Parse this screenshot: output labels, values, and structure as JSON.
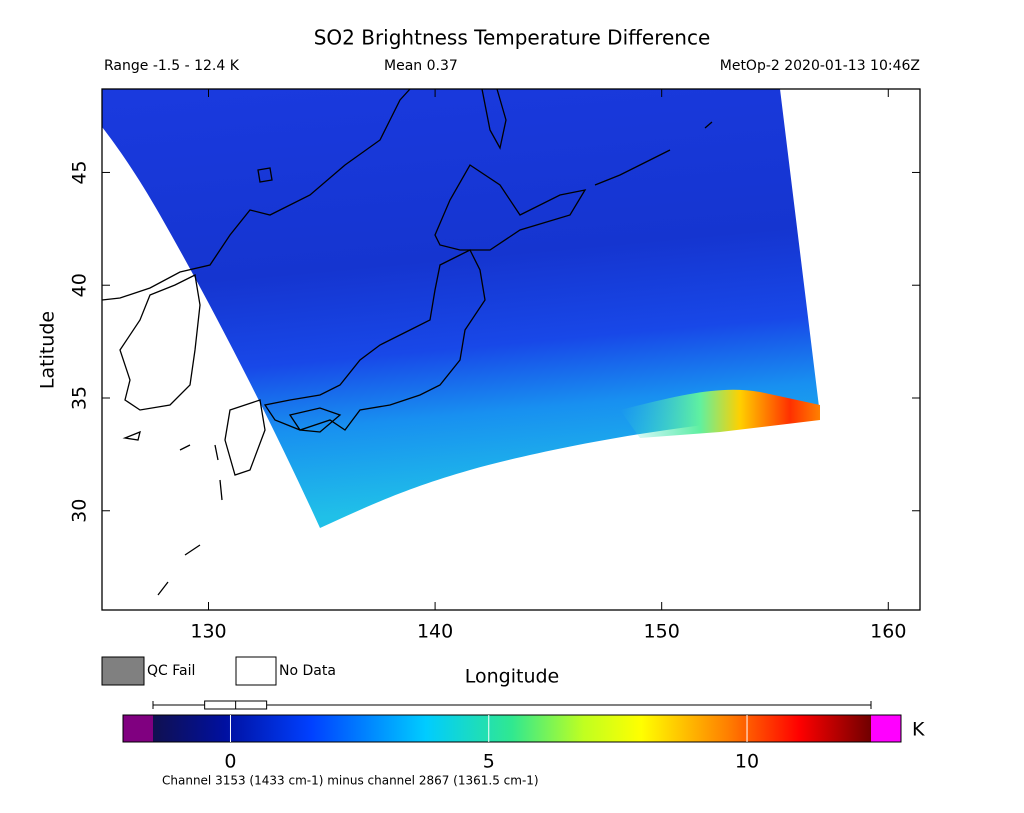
{
  "chart_data": {
    "type": "map",
    "title": "SO2 Brightness Temperature Difference",
    "range_label": "Range -1.5 - 12.4 K",
    "mean_label": "Mean 0.37",
    "satellite_label": "MetOp-2 2020-01-13 10:46Z",
    "xlabel": "Longitude",
    "ylabel": "Latitude",
    "xlim": [
      125.3,
      161.4
    ],
    "ylim": [
      25.6,
      48.7
    ],
    "xticks": [
      130,
      140,
      150,
      160
    ],
    "yticks": [
      30,
      35,
      40,
      45
    ],
    "legend": {
      "qc_fail": "QC Fail",
      "no_data": "No Data"
    },
    "colorbar": {
      "lim": [
        -1.5,
        12.4
      ],
      "ticks": [
        0,
        5,
        10
      ],
      "unit": "K",
      "box": {
        "min": -1.5,
        "q1": -0.5,
        "median": 0.1,
        "q3": 0.7,
        "max": 12.4
      },
      "caption": "Channel 3153 (1433 cm-1) minus channel 2867 (1361.5 cm-1)"
    }
  }
}
